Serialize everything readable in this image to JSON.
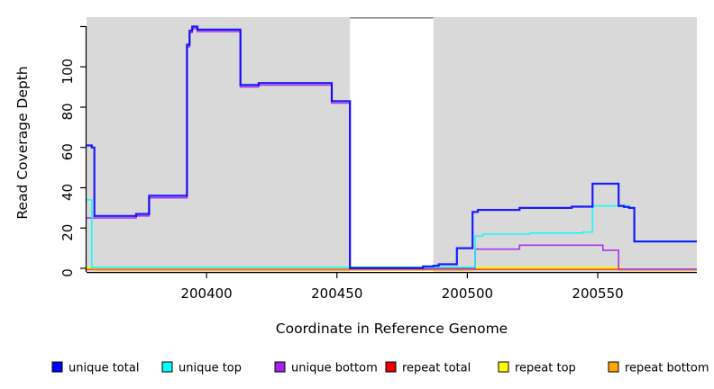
{
  "chart_data": {
    "type": "line",
    "subtype": "step-coverage",
    "title": "",
    "xlabel": "Coordinate in Reference Genome",
    "ylabel": "Read Coverage Depth",
    "xlim": [
      200354,
      200588
    ],
    "ylim": [
      0,
      120
    ],
    "grid": false,
    "panel_bg": "#d9d9d9",
    "gap_region": {
      "x0": 200455,
      "x1": 200487,
      "fill": "#ffffff",
      "top_border": "#8c8c8c"
    },
    "x_ticks": [
      {
        "v": 200400,
        "label": "200400"
      },
      {
        "v": 200450,
        "label": "200450"
      },
      {
        "v": 200500,
        "label": "200500"
      },
      {
        "v": 200550,
        "label": "200550"
      }
    ],
    "y_ticks": [
      {
        "v": 0,
        "label": "0"
      },
      {
        "v": 20,
        "label": "20"
      },
      {
        "v": 40,
        "label": "40"
      },
      {
        "v": 60,
        "label": "60"
      },
      {
        "v": 80,
        "label": "80"
      },
      {
        "v": 100,
        "label": "100"
      },
      {
        "v": 120,
        "label": ""
      }
    ],
    "series": [
      {
        "name": "repeat total",
        "color": "#ee0000",
        "width": 1.5,
        "points": [
          [
            200354,
            -0.6
          ],
          [
            200588,
            -0.6
          ]
        ]
      },
      {
        "name": "repeat top",
        "color": "#ffff00",
        "width": 1.5,
        "points": [
          [
            200354,
            0.5
          ],
          [
            200558,
            0.5
          ],
          [
            200559,
            -0.55
          ],
          [
            200588,
            -0.55
          ]
        ]
      },
      {
        "name": "repeat bottom",
        "color": "#ffa500",
        "width": 1.6,
        "points": [
          [
            200354,
            -0.25
          ],
          [
            200357,
            -0.9
          ],
          [
            200502,
            -0.25
          ],
          [
            200558,
            -0.9
          ],
          [
            200588,
            -0.9
          ]
        ]
      },
      {
        "name": "unique bottom",
        "color": "#a020f0",
        "width": 1.6,
        "points": [
          [
            200354,
            25
          ],
          [
            200373,
            26
          ],
          [
            200378,
            35
          ],
          [
            200392.5,
            110
          ],
          [
            200393.5,
            117
          ],
          [
            200394.5,
            119
          ],
          [
            200396.5,
            117.5
          ],
          [
            200413,
            90
          ],
          [
            200420,
            91
          ],
          [
            200448,
            82
          ],
          [
            200455,
            -0.1
          ],
          [
            200503,
            9.5
          ],
          [
            200520,
            11.5
          ],
          [
            200552,
            9
          ],
          [
            200558,
            -0.4
          ],
          [
            200588,
            -0.4
          ]
        ]
      },
      {
        "name": "unique top",
        "color": "#00ffff",
        "width": 1.6,
        "points": [
          [
            200354,
            34
          ],
          [
            200356,
            0.55
          ],
          [
            200503,
            16
          ],
          [
            200506,
            17
          ],
          [
            200524,
            17.5
          ],
          [
            200544,
            18
          ],
          [
            200548,
            31
          ],
          [
            200562,
            30
          ],
          [
            200564,
            13.3
          ],
          [
            200588,
            13.3
          ]
        ]
      },
      {
        "name": "unique total",
        "color": "#0000ff",
        "width": 2.2,
        "points": [
          [
            200354,
            61
          ],
          [
            200356,
            60
          ],
          [
            200357,
            26
          ],
          [
            200373,
            27
          ],
          [
            200378,
            36
          ],
          [
            200392.5,
            111
          ],
          [
            200393.5,
            118
          ],
          [
            200394.5,
            120
          ],
          [
            200396.5,
            118.5
          ],
          [
            200413,
            91
          ],
          [
            200420,
            92
          ],
          [
            200448,
            83
          ],
          [
            200455,
            0.2
          ],
          [
            200483,
            1
          ],
          [
            200487,
            1.3
          ],
          [
            200489,
            2
          ],
          [
            200496,
            10
          ],
          [
            200502,
            28
          ],
          [
            200504,
            29
          ],
          [
            200520,
            30
          ],
          [
            200540,
            30.6
          ],
          [
            200548,
            42
          ],
          [
            200558,
            31
          ],
          [
            200560,
            30.5
          ],
          [
            200562,
            30
          ],
          [
            200564,
            13.3
          ],
          [
            200588,
            13.3
          ]
        ]
      }
    ],
    "legend": [
      {
        "label": "unique total",
        "color": "#0000ff"
      },
      {
        "label": "unique top",
        "color": "#00ffff"
      },
      {
        "label": "unique bottom",
        "color": "#a020f0"
      },
      {
        "label": "repeat total",
        "color": "#ee0000"
      },
      {
        "label": "repeat top",
        "color": "#ffff00"
      },
      {
        "label": "repeat bottom",
        "color": "#ffa500"
      }
    ],
    "legend_position": "bottom"
  }
}
